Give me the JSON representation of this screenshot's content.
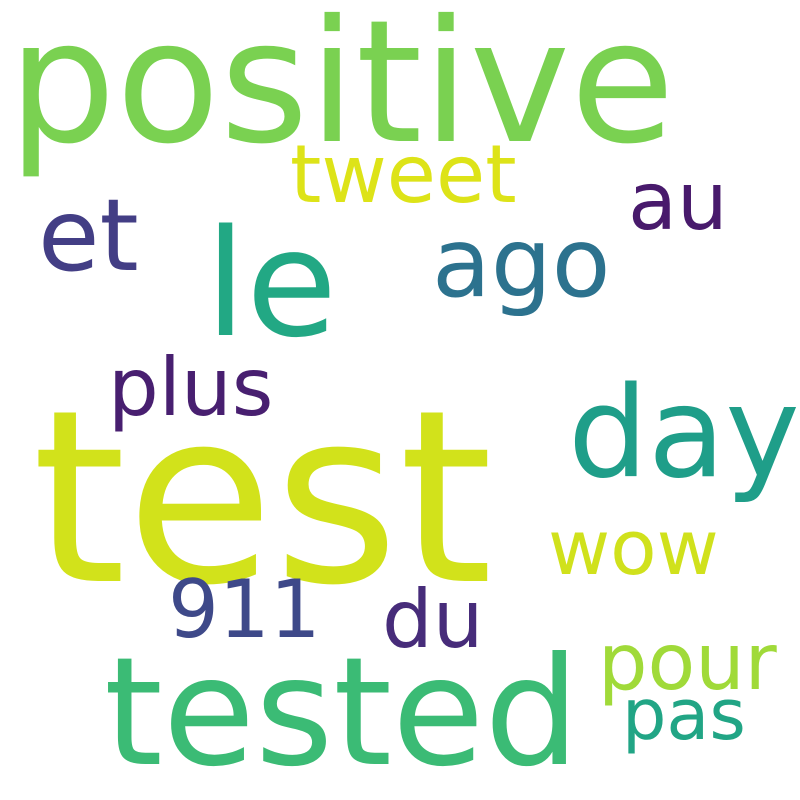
{
  "words": [
    {
      "text": "positive",
      "color": "#7ad151"
    },
    {
      "text": "test",
      "color": "#d2e21b"
    },
    {
      "text": "tested",
      "color": "#3bbb75"
    },
    {
      "text": "le",
      "color": "#22a884"
    },
    {
      "text": "day",
      "color": "#1f9e89"
    },
    {
      "text": "ago",
      "color": "#2c728e"
    },
    {
      "text": "et",
      "color": "#433e85"
    },
    {
      "text": "tweet",
      "color": "#dde318"
    },
    {
      "text": "au",
      "color": "#481a6c"
    },
    {
      "text": "plus",
      "color": "#481f70"
    },
    {
      "text": "wow",
      "color": "#d0e11c"
    },
    {
      "text": "911",
      "color": "#3e4989"
    },
    {
      "text": "du",
      "color": "#472c7a"
    },
    {
      "text": "pour",
      "color": "#a0da39"
    },
    {
      "text": "pas",
      "color": "#21a585"
    }
  ]
}
